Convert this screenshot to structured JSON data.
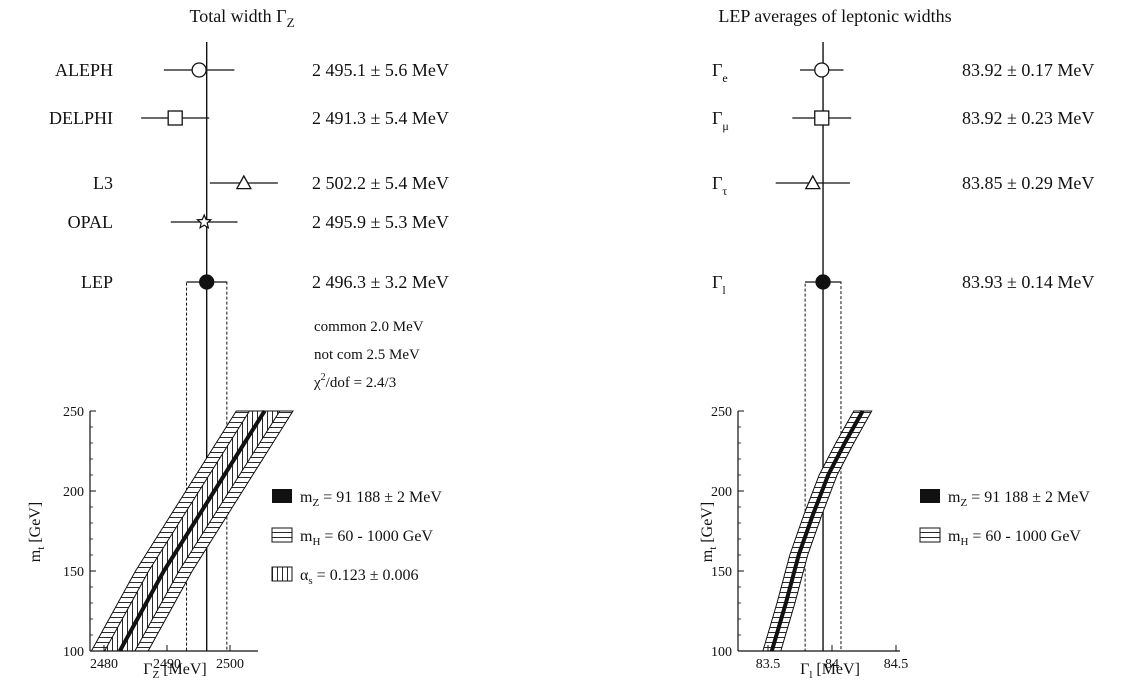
{
  "chart_data": [
    {
      "type": "scatter",
      "title": "Total width Γ_Z",
      "rows": [
        {
          "name": "ALEPH",
          "value": 2495.1,
          "error": 5.6,
          "text": "2 495.1 ± 5.6 MeV",
          "marker": "circle"
        },
        {
          "name": "DELPHI",
          "value": 2491.3,
          "error": 5.4,
          "text": "2 491.3 ± 5.4 MeV",
          "marker": "square"
        },
        {
          "name": "L3",
          "value": 2502.2,
          "error": 5.4,
          "text": "2 502.2 ± 5.4 MeV",
          "marker": "triangle"
        },
        {
          "name": "OPAL",
          "value": 2495.9,
          "error": 5.3,
          "text": "2 495.9 ± 5.3 MeV",
          "marker": "star"
        },
        {
          "name": "LEP",
          "value": 2496.3,
          "error": 3.2,
          "text": "2 496.3 ± 3.2 MeV",
          "marker": "filled-circle"
        }
      ],
      "notes": [
        "common  2.0 MeV",
        "not com   2.5 MeV",
        "χ²/dof =  2.4/3"
      ],
      "xlabel": "Γ_Z [MeV]",
      "ylabel": "m_t [GeV]",
      "xticks": [
        2480,
        2490,
        2500
      ],
      "yticks": [
        100,
        150,
        200,
        250
      ],
      "xlim": [
        2477,
        2505
      ],
      "ylim": [
        100,
        250
      ],
      "bands": [
        {
          "legend": "m_Z = 91 188 ± 2 MeV",
          "fill": "solid",
          "points": [
            [
              2482.5,
              100
            ],
            [
              2486,
              125
            ],
            [
              2489.5,
              150
            ],
            [
              2493.5,
              175
            ],
            [
              2497.5,
              200
            ],
            [
              2501.5,
              225
            ],
            [
              2505.5,
              250
            ]
          ]
        },
        {
          "legend": "m_H = 60 - 1000 GeV",
          "fill": "horizontal-hatch",
          "center": [
            [
              2482.5,
              100
            ],
            [
              2486,
              125
            ],
            [
              2489.5,
              150
            ],
            [
              2493.5,
              175
            ],
            [
              2497.5,
              200
            ],
            [
              2501.5,
              225
            ],
            [
              2505.5,
              250
            ]
          ],
          "halfwidth": 4.5
        },
        {
          "legend": "α_s = 0.123 ± 0.006",
          "fill": "vertical-hatch",
          "center": [
            [
              2482.5,
              100
            ],
            [
              2486,
              125
            ],
            [
              2489.5,
              150
            ],
            [
              2493.5,
              175
            ],
            [
              2497.5,
              200
            ],
            [
              2501.5,
              225
            ],
            [
              2505.5,
              250
            ]
          ],
          "halfwidth": 2.4
        }
      ]
    },
    {
      "type": "scatter",
      "title": "LEP averages of leptonic widths",
      "rows": [
        {
          "name": "Γ",
          "sub": "e",
          "value": 83.92,
          "error": 0.17,
          "text": "83.92 ± 0.17 MeV",
          "marker": "circle"
        },
        {
          "name": "Γ",
          "sub": "μ",
          "value": 83.92,
          "error": 0.23,
          "text": "83.92 ± 0.23 MeV",
          "marker": "square"
        },
        {
          "name": "Γ",
          "sub": "τ",
          "value": 83.85,
          "error": 0.29,
          "text": "83.85 ± 0.29 MeV",
          "marker": "triangle"
        },
        {
          "name": "Γ",
          "sub": "l",
          "value": 83.93,
          "error": 0.14,
          "text": "83.93 ± 0.14 MeV",
          "marker": "filled-circle"
        }
      ],
      "xlabel": "Γ_l [MeV]",
      "ylabel": "m_t [GeV]",
      "xticks": [
        83.5,
        84,
        84.5
      ],
      "yticks": [
        100,
        150,
        200,
        250
      ],
      "xlim": [
        83.2,
        84.7
      ],
      "ylim": [
        100,
        250
      ],
      "bands": [
        {
          "legend": "m_Z = 91 188 ± 2 MeV",
          "fill": "solid",
          "points": [
            [
              83.53,
              100
            ],
            [
              83.64,
              130
            ],
            [
              83.74,
              160
            ],
            [
              83.85,
              185
            ],
            [
              83.97,
              210
            ],
            [
              84.1,
              230
            ],
            [
              84.24,
              250
            ]
          ]
        },
        {
          "legend": "m_H = 60 - 1000 GeV",
          "fill": "horizontal-hatch",
          "center": [
            [
              83.53,
              100
            ],
            [
              83.64,
              130
            ],
            [
              83.74,
              160
            ],
            [
              83.85,
              185
            ],
            [
              83.97,
              210
            ],
            [
              84.1,
              230
            ],
            [
              84.24,
              250
            ]
          ],
          "halfwidth": 0.07
        }
      ]
    }
  ]
}
